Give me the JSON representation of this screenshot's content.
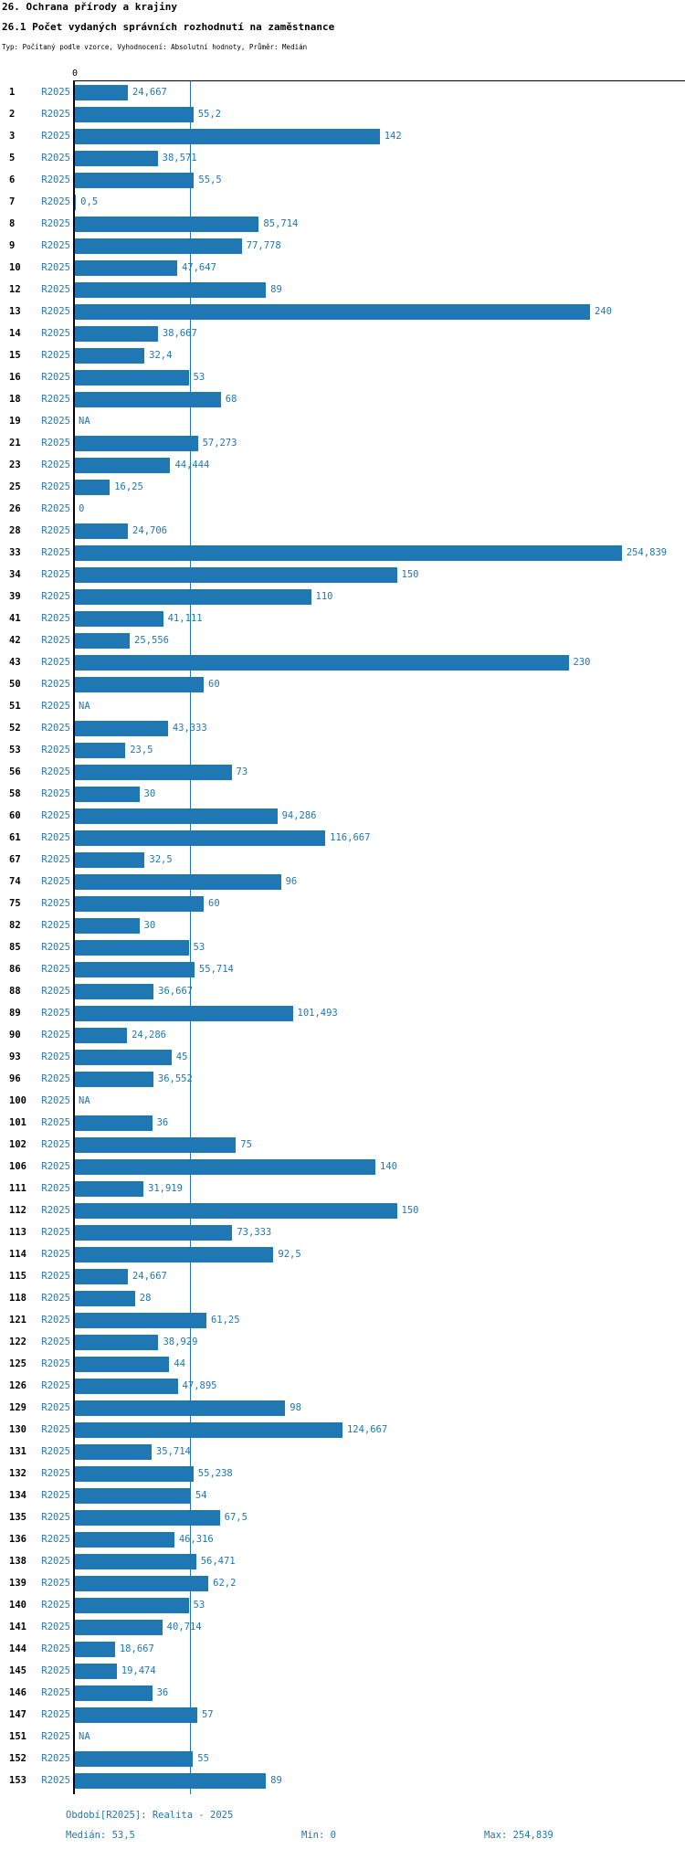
{
  "header": {
    "title": "26. Ochrana přírody a krajiny",
    "subtitle": "26.1 Počet vydaných správních rozhodnutí na zaměstnance",
    "meta": "Typ: Počítaný podle vzorce, Vyhodnocení: Absolutní hodnoty, Průměr: Medián"
  },
  "axis": {
    "zero_label": "0"
  },
  "footer": {
    "period_label": "Období[R2025]: Realita - 2025",
    "median_label": "Medián: 53,5",
    "min_label": "Min: 0",
    "max_label": "Max: 254,839"
  },
  "colors": {
    "bar": "#1f77b4",
    "value_text": "#1f77b4",
    "axis": "#000000",
    "median_line": "#1f77b4"
  },
  "chart_data": {
    "type": "bar",
    "orientation": "horizontal",
    "series_label": "R2025",
    "median": 53.5,
    "min": 0,
    "max": 254.839,
    "xlim": [
      0,
      254.839
    ],
    "grid": false,
    "rows": [
      {
        "num": "1",
        "value": 24.667,
        "label": "24,667"
      },
      {
        "num": "2",
        "value": 55.2,
        "label": "55,2"
      },
      {
        "num": "3",
        "value": 142,
        "label": "142"
      },
      {
        "num": "5",
        "value": 38.571,
        "label": "38,571"
      },
      {
        "num": "6",
        "value": 55.5,
        "label": "55,5"
      },
      {
        "num": "7",
        "value": 0.5,
        "label": "0,5"
      },
      {
        "num": "8",
        "value": 85.714,
        "label": "85,714"
      },
      {
        "num": "9",
        "value": 77.778,
        "label": "77,778"
      },
      {
        "num": "10",
        "value": 47.647,
        "label": "47,647"
      },
      {
        "num": "12",
        "value": 89,
        "label": "89"
      },
      {
        "num": "13",
        "value": 240,
        "label": "240"
      },
      {
        "num": "14",
        "value": 38.667,
        "label": "38,667"
      },
      {
        "num": "15",
        "value": 32.4,
        "label": "32,4"
      },
      {
        "num": "16",
        "value": 53,
        "label": "53"
      },
      {
        "num": "18",
        "value": 68,
        "label": "68"
      },
      {
        "num": "19",
        "value": null,
        "label": "NA"
      },
      {
        "num": "21",
        "value": 57.273,
        "label": "57,273"
      },
      {
        "num": "23",
        "value": 44.444,
        "label": "44,444"
      },
      {
        "num": "25",
        "value": 16.25,
        "label": "16,25"
      },
      {
        "num": "26",
        "value": 0,
        "label": "0"
      },
      {
        "num": "28",
        "value": 24.706,
        "label": "24,706"
      },
      {
        "num": "33",
        "value": 254.839,
        "label": "254,839"
      },
      {
        "num": "34",
        "value": 150,
        "label": "150"
      },
      {
        "num": "39",
        "value": 110,
        "label": "110"
      },
      {
        "num": "41",
        "value": 41.111,
        "label": "41,111"
      },
      {
        "num": "42",
        "value": 25.556,
        "label": "25,556"
      },
      {
        "num": "43",
        "value": 230,
        "label": "230"
      },
      {
        "num": "50",
        "value": 60,
        "label": "60"
      },
      {
        "num": "51",
        "value": null,
        "label": "NA"
      },
      {
        "num": "52",
        "value": 43.333,
        "label": "43,333"
      },
      {
        "num": "53",
        "value": 23.5,
        "label": "23,5"
      },
      {
        "num": "56",
        "value": 73,
        "label": "73"
      },
      {
        "num": "58",
        "value": 30,
        "label": "30"
      },
      {
        "num": "60",
        "value": 94.286,
        "label": "94,286"
      },
      {
        "num": "61",
        "value": 116.667,
        "label": "116,667"
      },
      {
        "num": "67",
        "value": 32.5,
        "label": "32,5"
      },
      {
        "num": "74",
        "value": 96,
        "label": "96"
      },
      {
        "num": "75",
        "value": 60,
        "label": "60"
      },
      {
        "num": "82",
        "value": 30,
        "label": "30"
      },
      {
        "num": "85",
        "value": 53,
        "label": "53"
      },
      {
        "num": "86",
        "value": 55.714,
        "label": "55,714"
      },
      {
        "num": "88",
        "value": 36.667,
        "label": "36,667"
      },
      {
        "num": "89",
        "value": 101.493,
        "label": "101,493"
      },
      {
        "num": "90",
        "value": 24.286,
        "label": "24,286"
      },
      {
        "num": "93",
        "value": 45,
        "label": "45"
      },
      {
        "num": "96",
        "value": 36.552,
        "label": "36,552"
      },
      {
        "num": "100",
        "value": null,
        "label": "NA"
      },
      {
        "num": "101",
        "value": 36,
        "label": "36"
      },
      {
        "num": "102",
        "value": 75,
        "label": "75"
      },
      {
        "num": "106",
        "value": 140,
        "label": "140"
      },
      {
        "num": "111",
        "value": 31.919,
        "label": "31,919"
      },
      {
        "num": "112",
        "value": 150,
        "label": "150"
      },
      {
        "num": "113",
        "value": 73.333,
        "label": "73,333"
      },
      {
        "num": "114",
        "value": 92.5,
        "label": "92,5"
      },
      {
        "num": "115",
        "value": 24.667,
        "label": "24,667"
      },
      {
        "num": "118",
        "value": 28,
        "label": "28"
      },
      {
        "num": "121",
        "value": 61.25,
        "label": "61,25"
      },
      {
        "num": "122",
        "value": 38.929,
        "label": "38,929"
      },
      {
        "num": "125",
        "value": 44,
        "label": "44"
      },
      {
        "num": "126",
        "value": 47.895,
        "label": "47,895"
      },
      {
        "num": "129",
        "value": 98,
        "label": "98"
      },
      {
        "num": "130",
        "value": 124.667,
        "label": "124,667"
      },
      {
        "num": "131",
        "value": 35.714,
        "label": "35,714"
      },
      {
        "num": "132",
        "value": 55.238,
        "label": "55,238"
      },
      {
        "num": "134",
        "value": 54,
        "label": "54"
      },
      {
        "num": "135",
        "value": 67.5,
        "label": "67,5"
      },
      {
        "num": "136",
        "value": 46.316,
        "label": "46,316"
      },
      {
        "num": "138",
        "value": 56.471,
        "label": "56,471"
      },
      {
        "num": "139",
        "value": 62.2,
        "label": "62,2"
      },
      {
        "num": "140",
        "value": 53,
        "label": "53"
      },
      {
        "num": "141",
        "value": 40.714,
        "label": "40,714"
      },
      {
        "num": "144",
        "value": 18.667,
        "label": "18,667"
      },
      {
        "num": "145",
        "value": 19.474,
        "label": "19,474"
      },
      {
        "num": "146",
        "value": 36,
        "label": "36"
      },
      {
        "num": "147",
        "value": 57,
        "label": "57"
      },
      {
        "num": "151",
        "value": null,
        "label": "NA"
      },
      {
        "num": "152",
        "value": 55,
        "label": "55"
      },
      {
        "num": "153",
        "value": 89,
        "label": "89"
      }
    ]
  }
}
